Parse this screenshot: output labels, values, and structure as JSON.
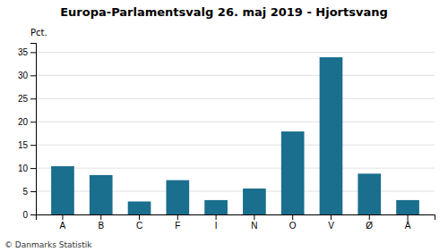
{
  "chart_data": {
    "type": "bar",
    "title": "Europa-Parlamentsvalg 26. maj 2019 - Hjortsvang",
    "categories": [
      "A",
      "B",
      "C",
      "F",
      "I",
      "N",
      "O",
      "V",
      "Ø",
      "Å"
    ],
    "values": [
      10.4,
      8.5,
      2.8,
      7.4,
      3.1,
      5.6,
      17.9,
      33.9,
      8.8,
      3.1
    ],
    "color": "#1a6e8e",
    "ylim": [
      0,
      37
    ],
    "yticks": [
      0,
      5,
      10,
      15,
      20,
      25,
      30,
      35
    ],
    "grid": true,
    "ylabel": "Pct.",
    "annotations": [
      "© Danmarks Statistik"
    ]
  }
}
